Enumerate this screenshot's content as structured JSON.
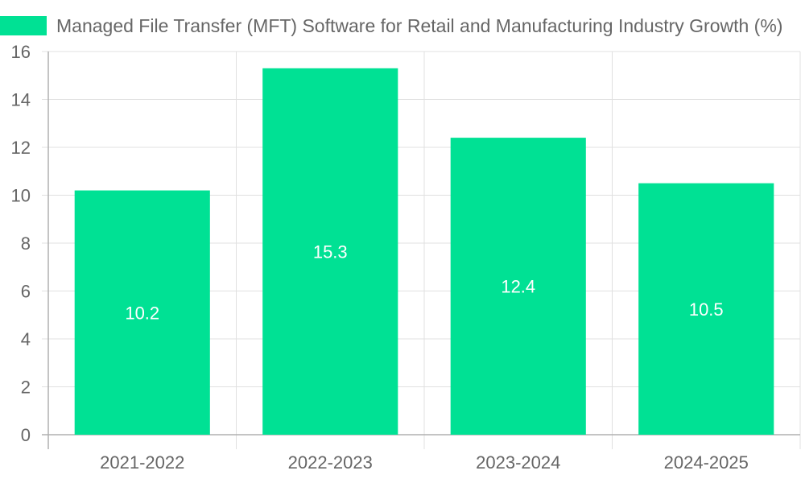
{
  "chart_data": {
    "type": "bar",
    "title": "",
    "xlabel": "",
    "ylabel": "",
    "categories": [
      "2021-2022",
      "2022-2023",
      "2023-2024",
      "2024-2025"
    ],
    "series": [
      {
        "name": "Managed File Transfer (MFT) Software for Retail and Manufacturing Industry Growth (%)",
        "values": [
          10.2,
          15.3,
          12.4,
          10.5
        ],
        "color": "#00e194"
      }
    ],
    "ylim": [
      0,
      16
    ],
    "yticks": [
      0,
      2,
      4,
      6,
      8,
      10,
      12,
      14,
      16
    ],
    "ytick_labels": [
      "0",
      "2",
      "4",
      "6",
      "8",
      "10",
      "12",
      "14",
      "16"
    ],
    "data_labels": [
      "10.2",
      "15.3",
      "12.4",
      "10.5"
    ],
    "grid": true,
    "legend_position": "top"
  }
}
